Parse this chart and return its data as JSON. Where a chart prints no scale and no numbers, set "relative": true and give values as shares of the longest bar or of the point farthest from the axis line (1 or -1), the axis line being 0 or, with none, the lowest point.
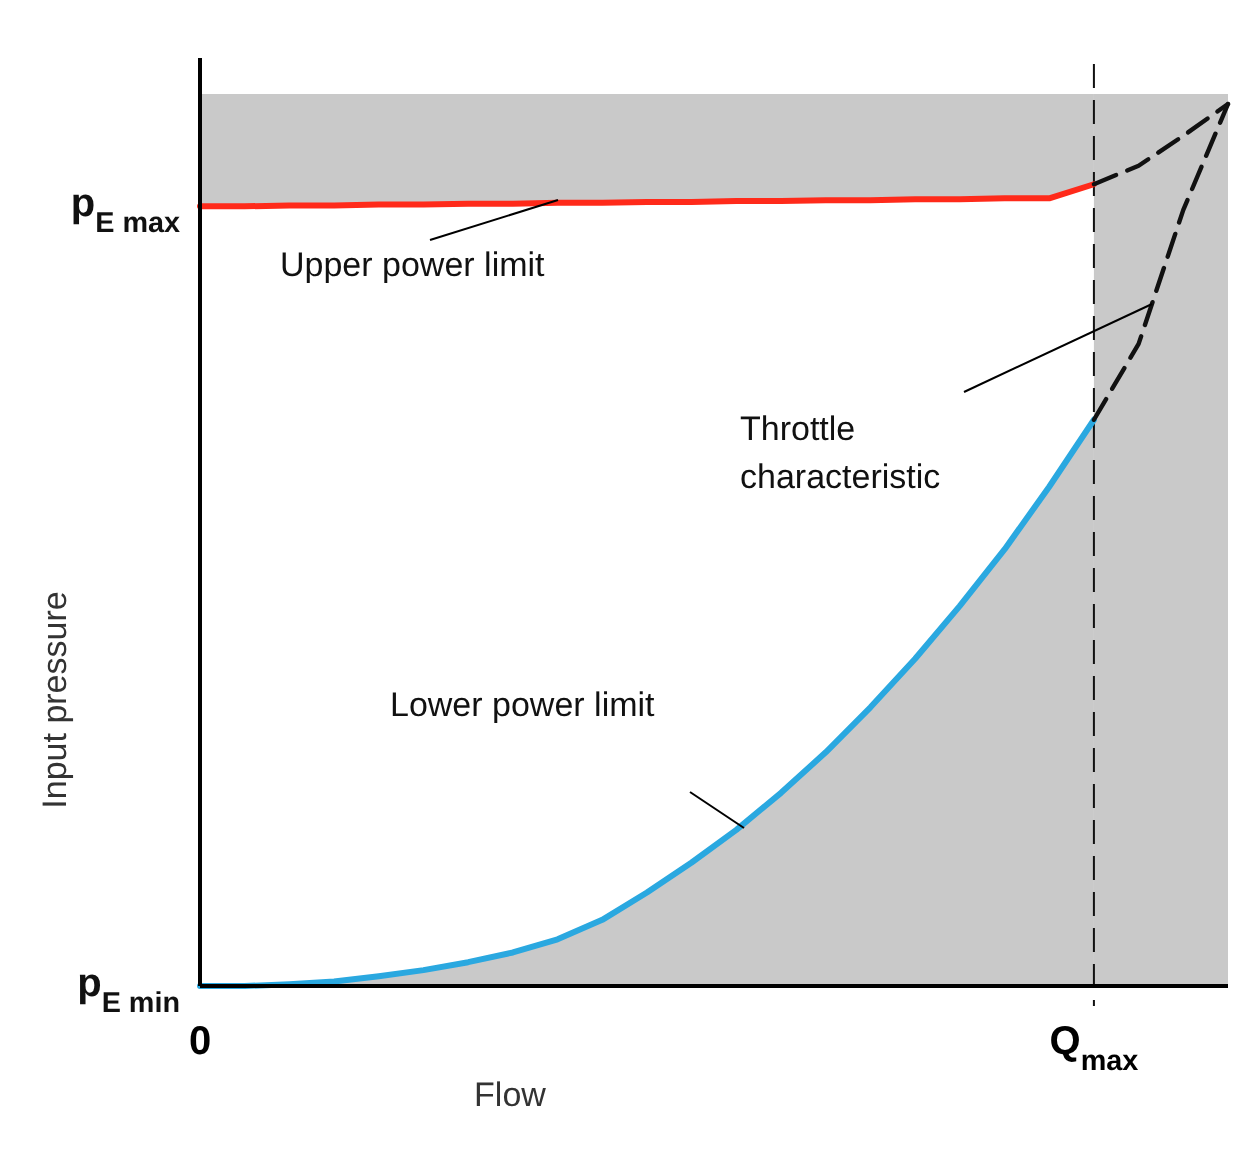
{
  "chart_data": {
    "type": "line",
    "xlabel": "Flow",
    "ylabel": "Input pressure",
    "relative": true,
    "categories": [
      "0",
      null,
      null,
      null,
      null,
      null,
      null,
      null,
      null,
      null,
      null,
      null,
      null,
      null,
      null,
      null,
      null,
      null,
      null,
      null,
      "Q$_{max}$",
      null,
      null,
      null
    ],
    "series": [
      {
        "color": "#ff2a1a",
        "values": [
          0.884,
          0.884,
          0.885,
          0.885,
          0.886,
          0.886,
          0.887,
          0.887,
          0.888,
          0.888,
          0.889,
          0.889,
          0.89,
          0.89,
          0.891,
          0.891,
          0.892,
          0.892,
          0.893,
          0.893,
          0.909,
          null,
          null,
          null
        ]
      },
      {
        "color": "#111111",
        "line_style": "dashed",
        "values": [
          null,
          null,
          null,
          null,
          null,
          null,
          null,
          null,
          null,
          null,
          null,
          null,
          null,
          null,
          null,
          null,
          null,
          null,
          null,
          null,
          0.909,
          0.93,
          0.964,
          1
        ]
      },
      {
        "color": "#2aa8e0",
        "values": [
          0,
          0,
          0.002,
          0.005,
          0.011,
          0.018,
          0.027,
          0.038,
          0.053,
          0.075,
          0.106,
          0.14,
          0.177,
          0.219,
          0.265,
          0.316,
          0.371,
          0.431,
          0.495,
          0.566,
          0.642,
          null,
          null,
          null
        ]
      },
      {
        "color": "#111111",
        "line_style": "dashed",
        "values": [
          null,
          null,
          null,
          null,
          null,
          null,
          null,
          null,
          null,
          null,
          null,
          null,
          null,
          null,
          null,
          null,
          null,
          null,
          null,
          null,
          0.642,
          0.728,
          0.88,
          1
        ]
      }
    ],
    "ref_lines": [
      {
        "axis": "x",
        "value": "Q$_{max}$",
        "color": "#111111",
        "line_style": "dashed"
      }
    ],
    "annotations": [
      "Upper power limit",
      "Throttle\ncharacteristic",
      "Lower power limit",
      "p$_{E max}$",
      "p$_{E min}$"
    ]
  }
}
